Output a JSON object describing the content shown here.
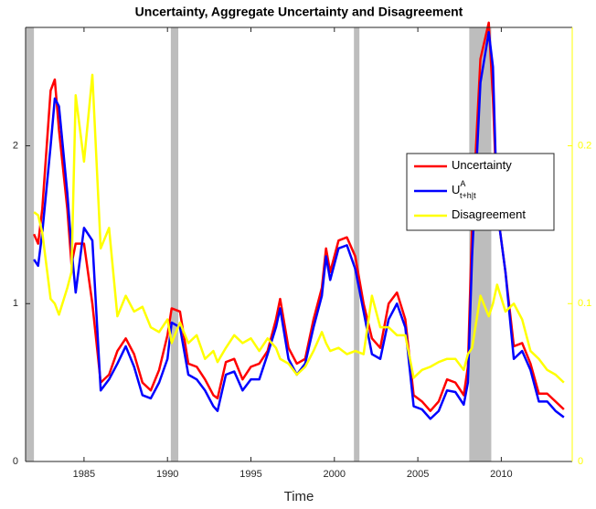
{
  "chart_data": {
    "type": "line",
    "title": "Uncertainty, Aggregate Uncertainty and Disagreement",
    "xlabel": "Time",
    "xlim": [
      1981.5,
      2014.25
    ],
    "xticks": [
      1985,
      1990,
      1995,
      2000,
      2005,
      2010
    ],
    "ylim": [
      0,
      2.75
    ],
    "yticks": [
      0,
      1,
      2
    ],
    "y2lim": [
      0,
      0.275
    ],
    "y2ticks": [
      0,
      0.1,
      0.2
    ],
    "y2color": "#ffff00",
    "shaded_periods": [
      [
        1981.5,
        1982.0
      ],
      [
        1990.2,
        1990.65
      ],
      [
        2001.17,
        2001.5
      ],
      [
        2008.08,
        2009.4
      ]
    ],
    "shade_color": "#bdbdbd",
    "legend": "upper right",
    "x": [
      1982.0,
      1982.25,
      1982.5,
      1983.0,
      1983.25,
      1983.5,
      1984.0,
      1984.25,
      1984.5,
      1985.0,
      1985.5,
      1986.0,
      1986.5,
      1987.0,
      1987.5,
      1988.0,
      1988.5,
      1989.0,
      1989.5,
      1990.0,
      1990.25,
      1990.75,
      1991.25,
      1991.75,
      1992.25,
      1992.75,
      1993.0,
      1993.5,
      1994.0,
      1994.5,
      1995.0,
      1995.5,
      1996.0,
      1996.5,
      1996.75,
      1997.25,
      1997.75,
      1998.25,
      1998.75,
      1999.25,
      1999.5,
      1999.75,
      2000.25,
      2000.75,
      2001.25,
      2001.75,
      2002.25,
      2002.75,
      2003.25,
      2003.75,
      2004.25,
      2004.75,
      2005.25,
      2005.75,
      2006.25,
      2006.75,
      2007.25,
      2007.75,
      2008.0,
      2008.25,
      2008.75,
      2009.25,
      2009.5,
      2009.75,
      2010.25,
      2010.75,
      2011.25,
      2011.75,
      2012.25,
      2012.75,
      2013.25,
      2013.75
    ],
    "series": [
      {
        "name": "Uncertainty",
        "color": "#ff0000",
        "values": [
          1.44,
          1.38,
          1.6,
          2.35,
          2.42,
          2.1,
          1.6,
          1.25,
          1.38,
          1.38,
          1.0,
          0.5,
          0.55,
          0.7,
          0.78,
          0.68,
          0.5,
          0.45,
          0.58,
          0.8,
          0.97,
          0.95,
          0.62,
          0.6,
          0.52,
          0.42,
          0.4,
          0.63,
          0.65,
          0.52,
          0.6,
          0.62,
          0.7,
          0.9,
          1.03,
          0.72,
          0.62,
          0.65,
          0.9,
          1.1,
          1.35,
          1.2,
          1.4,
          1.42,
          1.3,
          1.0,
          0.78,
          0.72,
          1.0,
          1.07,
          0.9,
          0.42,
          0.38,
          0.32,
          0.38,
          0.52,
          0.5,
          0.42,
          0.6,
          1.5,
          2.55,
          2.78,
          2.3,
          1.6,
          1.2,
          0.73,
          0.75,
          0.62,
          0.43,
          0.43,
          0.38,
          0.33
        ]
      },
      {
        "name": "U",
        "name_sup": "A",
        "name_sub": "t+h|t",
        "color": "#0000ff",
        "values": [
          1.28,
          1.24,
          1.45,
          2.0,
          2.3,
          2.25,
          1.7,
          1.35,
          1.07,
          1.48,
          1.4,
          0.45,
          0.52,
          0.62,
          0.73,
          0.6,
          0.42,
          0.4,
          0.5,
          0.65,
          0.88,
          0.85,
          0.55,
          0.52,
          0.45,
          0.35,
          0.32,
          0.55,
          0.57,
          0.45,
          0.52,
          0.52,
          0.68,
          0.85,
          0.97,
          0.65,
          0.55,
          0.62,
          0.85,
          1.05,
          1.3,
          1.15,
          1.35,
          1.37,
          1.22,
          0.95,
          0.68,
          0.65,
          0.9,
          1.0,
          0.85,
          0.35,
          0.33,
          0.27,
          0.32,
          0.45,
          0.44,
          0.36,
          0.5,
          1.3,
          2.4,
          2.72,
          2.5,
          1.6,
          1.2,
          0.65,
          0.7,
          0.58,
          0.38,
          0.38,
          0.32,
          0.28
        ]
      },
      {
        "name": "Disagreement",
        "color": "#ffff00",
        "axis": "y2",
        "values": [
          0.158,
          0.156,
          0.145,
          0.103,
          0.1,
          0.093,
          0.11,
          0.12,
          0.232,
          0.19,
          0.245,
          0.135,
          0.148,
          0.092,
          0.105,
          0.095,
          0.098,
          0.085,
          0.082,
          0.09,
          0.075,
          0.088,
          0.075,
          0.08,
          0.065,
          0.07,
          0.063,
          0.072,
          0.08,
          0.075,
          0.078,
          0.07,
          0.078,
          0.072,
          0.065,
          0.062,
          0.055,
          0.06,
          0.07,
          0.082,
          0.075,
          0.07,
          0.072,
          0.068,
          0.07,
          0.068,
          0.105,
          0.085,
          0.085,
          0.08,
          0.08,
          0.053,
          0.058,
          0.06,
          0.063,
          0.065,
          0.065,
          0.058,
          0.068,
          0.072,
          0.105,
          0.092,
          0.1,
          0.112,
          0.095,
          0.1,
          0.09,
          0.07,
          0.065,
          0.058,
          0.055,
          0.05
        ]
      }
    ]
  }
}
